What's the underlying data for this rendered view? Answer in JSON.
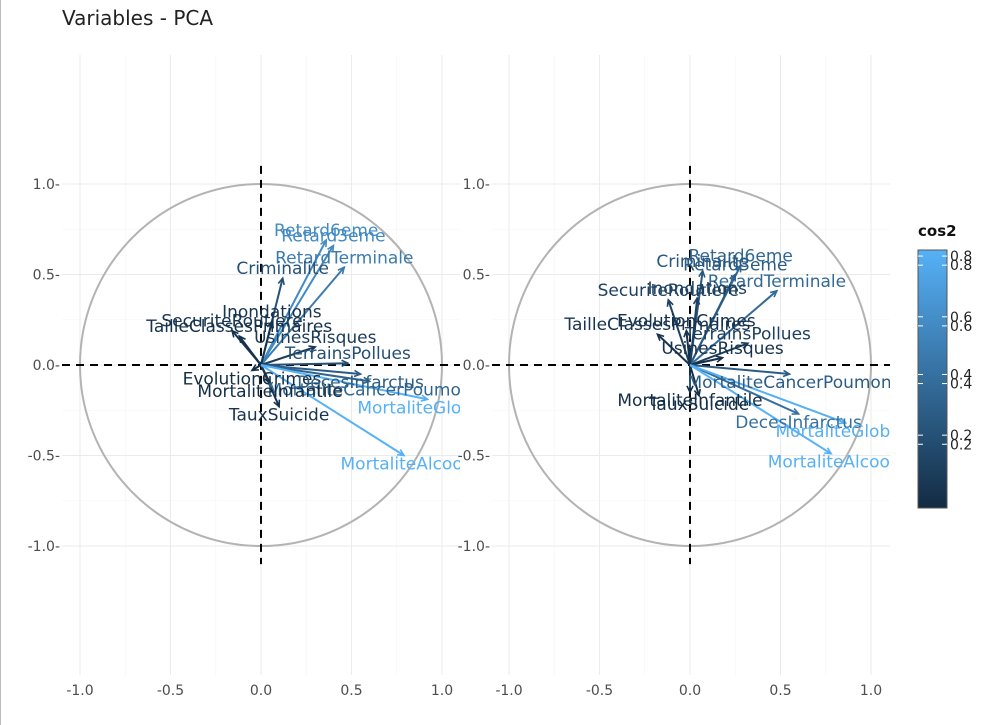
{
  "title": "Variables - PCA",
  "chart_data": [
    {
      "type": "scatter",
      "subtype": "pca-correlation-circle",
      "xlim": [
        -1.1,
        1.1
      ],
      "ylim": [
        -1.1,
        1.1
      ],
      "x_ticks": [
        -1.0,
        -0.5,
        0.0,
        0.5,
        1.0
      ],
      "y_ticks": [
        -1.0,
        -0.5,
        0.0,
        0.5,
        1.0
      ],
      "x_tick_labels": [
        "-1.0",
        "-0.5",
        "0.0",
        "0.5",
        "1.0"
      ],
      "y_tick_labels": [
        "-1.0-",
        "-0.5-",
        "0.0-",
        "0.5-",
        "1.0-"
      ],
      "grid": true,
      "vectors": [
        {
          "name": "Retard6eme",
          "x": 0.36,
          "y": 0.69,
          "cos2": 0.61
        },
        {
          "name": "Retard3eme",
          "x": 0.4,
          "y": 0.66,
          "cos2": 0.6
        },
        {
          "name": "RetardTerminale",
          "x": 0.46,
          "y": 0.54,
          "cos2": 0.51
        },
        {
          "name": "Criminalite",
          "x": 0.12,
          "y": 0.48,
          "cos2": 0.24
        },
        {
          "name": "Inondations",
          "x": 0.06,
          "y": 0.24,
          "cos2": 0.06
        },
        {
          "name": "SecuriteRoutiere",
          "x": -0.16,
          "y": 0.19,
          "cos2": 0.06
        },
        {
          "name": "TailleClassesPrimaires",
          "x": -0.12,
          "y": 0.16,
          "cos2": 0.04
        },
        {
          "name": "UsinesRisques",
          "x": 0.3,
          "y": 0.1,
          "cos2": 0.1
        },
        {
          "name": "TerrainsPollues",
          "x": 0.48,
          "y": 0.01,
          "cos2": 0.23
        },
        {
          "name": "EvolutionCrimes",
          "x": -0.05,
          "y": -0.03,
          "cos2": 0.01
        },
        {
          "name": "DecesInfarctus",
          "x": 0.55,
          "y": -0.05,
          "cos2": 0.31
        },
        {
          "name": "MortaliteCancerPoumon",
          "x": 0.6,
          "y": -0.09,
          "cos2": 0.37
        },
        {
          "name": "MortaliteInfantile",
          "x": 0.05,
          "y": -0.1,
          "cos2": 0.01
        },
        {
          "name": "MortaliteGlobale",
          "x": 0.92,
          "y": -0.19,
          "cos2": 0.88
        },
        {
          "name": "TauxSuicide",
          "x": 0.1,
          "y": -0.23,
          "cos2": 0.06
        },
        {
          "name": "MortaliteAlcool",
          "x": 0.79,
          "y": -0.5,
          "cos2": 0.87
        }
      ]
    },
    {
      "type": "scatter",
      "subtype": "pca-correlation-circle",
      "xlim": [
        -1.1,
        1.1
      ],
      "ylim": [
        -1.1,
        1.1
      ],
      "x_ticks": [
        -1.0,
        -0.5,
        0.0,
        0.5,
        1.0
      ],
      "y_ticks": [
        -1.0,
        -0.5,
        0.0,
        0.5,
        1.0
      ],
      "x_tick_labels": [
        "-1.0",
        "-0.5",
        "0.0",
        "0.5",
        "1.0"
      ],
      "y_tick_labels": [
        "1.0-",
        "0.5-",
        "0.0-",
        "-0.5-",
        "-1.0-"
      ],
      "grid": true,
      "vectors": [
        {
          "name": "Retard6eme",
          "x": 0.28,
          "y": 0.55,
          "cos2": 0.38
        },
        {
          "name": "Retard3eme",
          "x": 0.25,
          "y": 0.5,
          "cos2": 0.31
        },
        {
          "name": "Criminalite",
          "x": 0.07,
          "y": 0.52,
          "cos2": 0.28
        },
        {
          "name": "RetardTerminale",
          "x": 0.48,
          "y": 0.41,
          "cos2": 0.4
        },
        {
          "name": "SecuriteRoutiere",
          "x": -0.12,
          "y": 0.36,
          "cos2": 0.14
        },
        {
          "name": "Inondations",
          "x": 0.04,
          "y": 0.37,
          "cos2": 0.14
        },
        {
          "name": "EvolutionCrimes",
          "x": -0.02,
          "y": 0.19,
          "cos2": 0.04
        },
        {
          "name": "TailleClassesPrimaires",
          "x": -0.18,
          "y": 0.17,
          "cos2": 0.06
        },
        {
          "name": "TerrainsPollues",
          "x": 0.32,
          "y": 0.12,
          "cos2": 0.12
        },
        {
          "name": "UsinesRisques",
          "x": 0.18,
          "y": 0.04,
          "cos2": 0.04
        },
        {
          "name": "MortaliteCancerPoumon",
          "x": 0.55,
          "y": -0.05,
          "cos2": 0.31
        },
        {
          "name": "MortaliteInfantile",
          "x": 0.0,
          "y": -0.15,
          "cos2": 0.02
        },
        {
          "name": "TauxSuicide",
          "x": 0.05,
          "y": -0.17,
          "cos2": 0.03
        },
        {
          "name": "DecesInfarctus",
          "x": 0.6,
          "y": -0.27,
          "cos2": 0.43
        },
        {
          "name": "MortaliteGlobale",
          "x": 0.86,
          "y": -0.32,
          "cos2": 0.84
        },
        {
          "name": "MortaliteAlcool",
          "x": 0.78,
          "y": -0.49,
          "cos2": 0.85
        }
      ]
    }
  ],
  "legend": {
    "title": "cos2",
    "placement": "right",
    "labels": [
      "0.8",
      "0.8",
      "0.6",
      "0.6",
      "0.4",
      "0.4",
      "0.2",
      "0.2"
    ],
    "label_values": [
      0.83,
      0.8,
      0.63,
      0.6,
      0.44,
      0.41,
      0.24,
      0.21
    ],
    "min": 0.0,
    "max": 0.85
  },
  "colors": {
    "low": "#132B43",
    "high": "#56B1F7",
    "grid": "#ebebeb",
    "circle": "#b3b3b3",
    "axis_text": "#4d4d4d"
  }
}
